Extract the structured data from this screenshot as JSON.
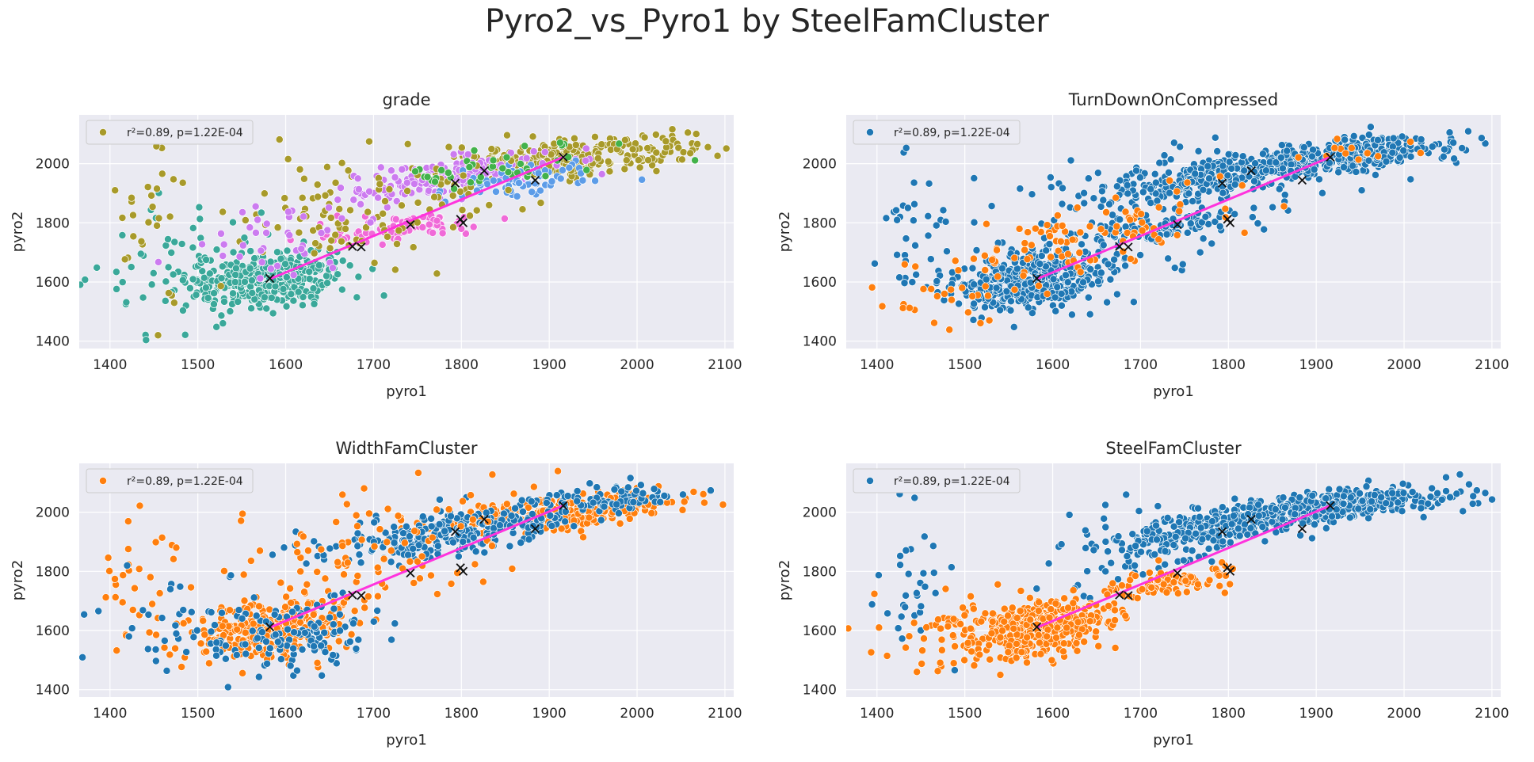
{
  "figure": {
    "suptitle": "Pyro2_vs_Pyro1 by SteelFamCluster"
  },
  "chart_data": [
    {
      "type": "scatter",
      "title": "grade",
      "xlabel": "pyro1",
      "ylabel": "pyro2",
      "xlim": [
        1365,
        2110
      ],
      "ylim": [
        1375,
        2165
      ],
      "xticks": [
        1400,
        1500,
        1600,
        1700,
        1800,
        1900,
        2000,
        2100
      ],
      "yticks": [
        1400,
        1600,
        1800,
        2000
      ],
      "grid": true,
      "legend": {
        "placement": "upper-left",
        "label": "r²=0.89, p=1.22E-04",
        "marker_color": "#a89a2a"
      },
      "palette": [
        "#a89a2a",
        "#3aa89a",
        "#cc7bf0",
        "#f06ad8",
        "#5c9ce8",
        "#42b24a"
      ],
      "clusters": [
        {
          "cx": 1920,
          "cy": 2020,
          "sx": 70,
          "sy": 35,
          "rho": 0.6,
          "n": 320,
          "color_index": 0
        },
        {
          "cx": 1780,
          "cy": 1950,
          "sx": 60,
          "sy": 40,
          "rho": 0.6,
          "n": 160,
          "color_index": 2
        },
        {
          "cx": 1580,
          "cy": 1610,
          "sx": 45,
          "sy": 50,
          "rho": 0.3,
          "n": 380,
          "color_index": 1
        },
        {
          "cx": 1730,
          "cy": 1780,
          "sx": 45,
          "sy": 25,
          "rho": 0.5,
          "n": 90,
          "color_index": 3
        },
        {
          "cx": 1870,
          "cy": 1940,
          "sx": 40,
          "sy": 30,
          "rho": 0.5,
          "n": 70,
          "color_index": 4
        },
        {
          "cx": 1700,
          "cy": 1870,
          "sx": 90,
          "sy": 110,
          "rho": 0.4,
          "n": 110,
          "color_index": 0
        },
        {
          "cx": 1480,
          "cy": 1680,
          "sx": 50,
          "sy": 120,
          "rho": 0.2,
          "n": 50,
          "color_index": 1
        },
        {
          "cx": 1440,
          "cy": 1760,
          "sx": 25,
          "sy": 150,
          "rho": 0.0,
          "n": 30,
          "color_index": 0
        },
        {
          "cx": 1600,
          "cy": 1760,
          "sx": 60,
          "sy": 80,
          "rho": 0.3,
          "n": 40,
          "color_index": 2
        },
        {
          "cx": 1850,
          "cy": 1990,
          "sx": 60,
          "sy": 35,
          "rho": 0.5,
          "n": 40,
          "color_index": 5
        }
      ],
      "fit_line": {
        "x": [
          1582,
          1916
        ],
        "y": [
          1610,
          2022
        ],
        "color": "#ff33dd"
      },
      "x_markers": {
        "x": [
          1582,
          1676,
          1686,
          1742,
          1793,
          1799,
          1802,
          1826,
          1884,
          1916
        ],
        "y": [
          1612,
          1720,
          1718,
          1794,
          1934,
          1812,
          1800,
          1976,
          1944,
          2022
        ]
      }
    },
    {
      "type": "scatter",
      "title": "TurnDownOnCompressed",
      "xlabel": "pyro1",
      "ylabel": "pyro2",
      "xlim": [
        1365,
        2110
      ],
      "ylim": [
        1375,
        2165
      ],
      "xticks": [
        1400,
        1500,
        1600,
        1700,
        1800,
        1900,
        2000,
        2100
      ],
      "yticks": [
        1400,
        1600,
        1800,
        2000
      ],
      "grid": true,
      "legend": {
        "placement": "upper-left",
        "label": "r²=0.89, p=1.22E-04",
        "marker_color": "#1f77b4"
      },
      "palette": [
        "#1f77b4",
        "#ff7f0e"
      ],
      "clusters": [
        {
          "cx": 1920,
          "cy": 2020,
          "sx": 70,
          "sy": 35,
          "rho": 0.6,
          "n": 380,
          "color_index": 0
        },
        {
          "cx": 1780,
          "cy": 1950,
          "sx": 60,
          "sy": 40,
          "rho": 0.6,
          "n": 220,
          "color_index": 0
        },
        {
          "cx": 1580,
          "cy": 1610,
          "sx": 45,
          "sy": 50,
          "rho": 0.3,
          "n": 420,
          "color_index": 0
        },
        {
          "cx": 1730,
          "cy": 1780,
          "sx": 45,
          "sy": 25,
          "rho": 0.5,
          "n": 90,
          "color_index": 0
        },
        {
          "cx": 1700,
          "cy": 1870,
          "sx": 90,
          "sy": 110,
          "rho": 0.4,
          "n": 120,
          "color_index": 0
        },
        {
          "cx": 1440,
          "cy": 1760,
          "sx": 25,
          "sy": 150,
          "rho": 0.0,
          "n": 35,
          "color_index": 0
        },
        {
          "cx": 1640,
          "cy": 1740,
          "sx": 80,
          "sy": 90,
          "rho": 0.6,
          "n": 90,
          "color_index": 1
        },
        {
          "cx": 1480,
          "cy": 1560,
          "sx": 40,
          "sy": 80,
          "rho": 0.3,
          "n": 30,
          "color_index": 1
        },
        {
          "cx": 1950,
          "cy": 2060,
          "sx": 40,
          "sy": 30,
          "rho": 0.3,
          "n": 12,
          "color_index": 1
        }
      ],
      "fit_line": {
        "x": [
          1582,
          1916
        ],
        "y": [
          1610,
          2022
        ],
        "color": "#ff33dd"
      },
      "x_markers": {
        "x": [
          1582,
          1676,
          1686,
          1742,
          1793,
          1799,
          1802,
          1826,
          1884,
          1916
        ],
        "y": [
          1612,
          1720,
          1718,
          1794,
          1934,
          1812,
          1800,
          1976,
          1944,
          2022
        ]
      }
    },
    {
      "type": "scatter",
      "title": "WidthFamCluster",
      "xlabel": "pyro1",
      "ylabel": "pyro2",
      "xlim": [
        1365,
        2110
      ],
      "ylim": [
        1375,
        2165
      ],
      "xticks": [
        1400,
        1500,
        1600,
        1700,
        1800,
        1900,
        2000,
        2100
      ],
      "yticks": [
        1400,
        1600,
        1800,
        2000
      ],
      "grid": true,
      "legend": {
        "placement": "upper-left",
        "label": "r²=0.89, p=1.22E-04",
        "marker_color": "#ff7f0e"
      },
      "palette": [
        "#ff7f0e",
        "#1f77b4"
      ],
      "clusters": [
        {
          "cx": 1920,
          "cy": 2000,
          "sx": 70,
          "sy": 35,
          "rho": 0.6,
          "n": 280,
          "color_index": 0
        },
        {
          "cx": 1790,
          "cy": 1930,
          "sx": 70,
          "sy": 45,
          "rho": 0.6,
          "n": 260,
          "color_index": 1
        },
        {
          "cx": 1580,
          "cy": 1600,
          "sx": 45,
          "sy": 50,
          "rho": 0.3,
          "n": 330,
          "color_index": 0
        },
        {
          "cx": 1610,
          "cy": 1580,
          "sx": 50,
          "sy": 60,
          "rho": 0.3,
          "n": 120,
          "color_index": 1
        },
        {
          "cx": 1960,
          "cy": 2040,
          "sx": 50,
          "sy": 30,
          "rho": 0.4,
          "n": 90,
          "color_index": 1
        },
        {
          "cx": 1700,
          "cy": 1870,
          "sx": 90,
          "sy": 110,
          "rho": 0.4,
          "n": 90,
          "color_index": 0
        },
        {
          "cx": 1440,
          "cy": 1760,
          "sx": 25,
          "sy": 150,
          "rho": 0.0,
          "n": 30,
          "color_index": 0
        },
        {
          "cx": 1480,
          "cy": 1620,
          "sx": 50,
          "sy": 110,
          "rho": 0.2,
          "n": 40,
          "color_index": 1
        }
      ],
      "fit_line": {
        "x": [
          1582,
          1916
        ],
        "y": [
          1610,
          2022
        ],
        "color": "#ff33dd"
      },
      "x_markers": {
        "x": [
          1582,
          1676,
          1686,
          1742,
          1793,
          1799,
          1802,
          1826,
          1884,
          1916
        ],
        "y": [
          1612,
          1720,
          1718,
          1794,
          1934,
          1812,
          1800,
          1976,
          1944,
          2022
        ]
      }
    },
    {
      "type": "scatter",
      "title": "SteelFamCluster",
      "xlabel": "pyro1",
      "ylabel": "pyro2",
      "xlim": [
        1365,
        2110
      ],
      "ylim": [
        1375,
        2165
      ],
      "xticks": [
        1400,
        1500,
        1600,
        1700,
        1800,
        1900,
        2000,
        2100
      ],
      "yticks": [
        1400,
        1600,
        1800,
        2000
      ],
      "grid": true,
      "legend": {
        "placement": "upper-left",
        "label": "r²=0.89, p=1.22E-04",
        "marker_color": "#1f77b4"
      },
      "palette": [
        "#1f77b4",
        "#ff7f0e"
      ],
      "clusters": [
        {
          "cx": 1920,
          "cy": 2020,
          "sx": 70,
          "sy": 35,
          "rho": 0.6,
          "n": 380,
          "color_index": 0
        },
        {
          "cx": 1780,
          "cy": 1950,
          "sx": 60,
          "sy": 40,
          "rho": 0.6,
          "n": 240,
          "color_index": 0
        },
        {
          "cx": 1700,
          "cy": 1870,
          "sx": 80,
          "sy": 80,
          "rho": 0.5,
          "n": 80,
          "color_index": 0
        },
        {
          "cx": 1440,
          "cy": 1760,
          "sx": 25,
          "sy": 150,
          "rho": 0.0,
          "n": 30,
          "color_index": 0
        },
        {
          "cx": 1580,
          "cy": 1610,
          "sx": 45,
          "sy": 50,
          "rho": 0.3,
          "n": 420,
          "color_index": 1
        },
        {
          "cx": 1730,
          "cy": 1760,
          "sx": 40,
          "sy": 25,
          "rho": 0.5,
          "n": 90,
          "color_index": 1
        },
        {
          "cx": 1480,
          "cy": 1560,
          "sx": 40,
          "sy": 90,
          "rho": 0.3,
          "n": 40,
          "color_index": 1
        }
      ],
      "fit_line": {
        "x": [
          1582,
          1916
        ],
        "y": [
          1610,
          2022
        ],
        "color": "#ff33dd"
      },
      "x_markers": {
        "x": [
          1582,
          1676,
          1686,
          1742,
          1793,
          1799,
          1802,
          1826,
          1884,
          1916
        ],
        "y": [
          1612,
          1720,
          1718,
          1794,
          1934,
          1812,
          1800,
          1976,
          1944,
          2022
        ]
      }
    }
  ]
}
